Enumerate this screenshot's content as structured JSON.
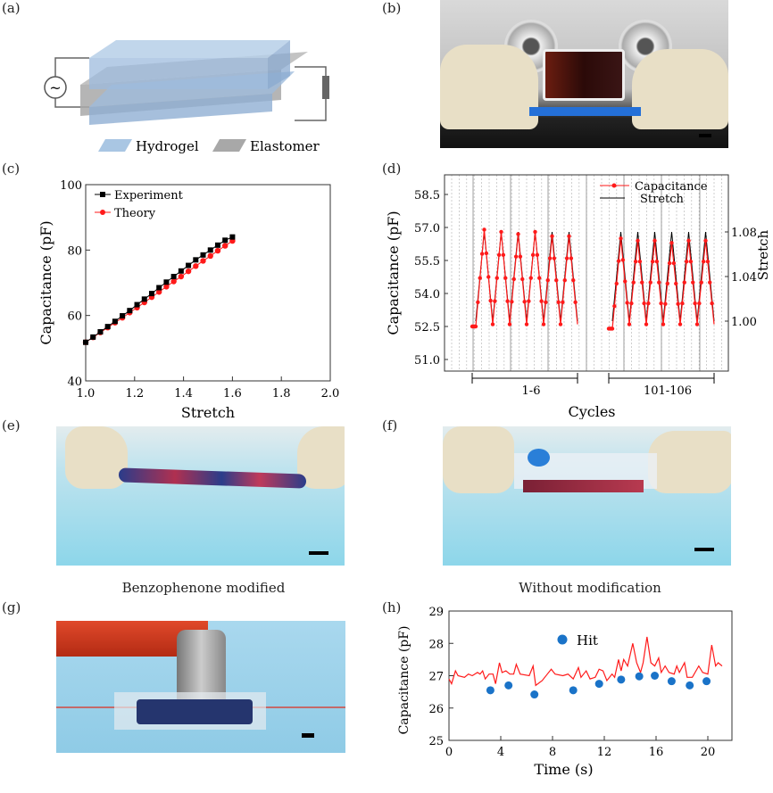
{
  "panels": {
    "a": {
      "label": "(a)",
      "legend": [
        "Hydrogel",
        "Elastomer"
      ],
      "ac_symbol": "~"
    },
    "b": {
      "label": "(b)"
    },
    "c": {
      "label": "(c)"
    },
    "d": {
      "label": "(d)"
    },
    "e": {
      "label": "(e)",
      "caption": "Benzophenone modified"
    },
    "f": {
      "label": "(f)",
      "caption": "Without modification"
    },
    "g": {
      "label": "(g)"
    },
    "h": {
      "label": "(h)"
    }
  },
  "colors": {
    "black": "#000000",
    "red": "#ff1a1a",
    "blue": "#1a73c8",
    "hydrogel": "#a9c6e3",
    "elastomer": "#a8a8a8"
  },
  "chart_data": [
    {
      "id": "c",
      "type": "line",
      "xlabel": "Stretch",
      "ylabel": "Capacitance (pF)",
      "xlim": [
        1.0,
        2.0
      ],
      "ylim": [
        40,
        100
      ],
      "xticks": [
        "1.0",
        "1.2",
        "1.4",
        "1.6",
        "1.8",
        "2.0"
      ],
      "yticks": [
        "40",
        "60",
        "80",
        "100"
      ],
      "legend_position": "top-left",
      "x": [
        1.0,
        1.03,
        1.06,
        1.09,
        1.12,
        1.15,
        1.18,
        1.21,
        1.24,
        1.27,
        1.3,
        1.33,
        1.36,
        1.39,
        1.42,
        1.45,
        1.48,
        1.51,
        1.54,
        1.57,
        1.6
      ],
      "series": [
        {
          "name": "Experiment",
          "color": "#000000",
          "marker": "square",
          "values": [
            51.8,
            53.4,
            55.0,
            56.6,
            58.2,
            59.9,
            61.5,
            63.3,
            65.0,
            66.7,
            68.5,
            70.2,
            71.9,
            73.6,
            75.3,
            77.0,
            78.5,
            80.0,
            81.5,
            83.0,
            84.0
          ]
        },
        {
          "name": "Theory",
          "color": "#ff1a1a",
          "marker": "circle",
          "values": [
            51.8,
            53.3,
            54.8,
            56.3,
            57.8,
            59.3,
            60.9,
            62.4,
            64.0,
            65.6,
            67.2,
            68.8,
            70.4,
            71.9,
            73.5,
            75.1,
            76.7,
            78.2,
            79.8,
            81.3,
            82.8
          ]
        }
      ]
    },
    {
      "id": "d",
      "type": "line",
      "xlabel": "Cycles",
      "ylabel": "Capacitance (pF)",
      "y2label": "Stretch",
      "ylim": [
        50.2,
        59.0
      ],
      "y2lim": [
        1.0,
        1.08
      ],
      "yticks": [
        "51.0",
        "52.5",
        "54.0",
        "55.5",
        "57.0",
        "58.5"
      ],
      "y2ticks": [
        "1.00",
        "1.04",
        "1.08"
      ],
      "groups": [
        {
          "label": "1-6",
          "baseline": 52.5,
          "min": 52.6,
          "peaks": [
            56.9,
            56.8,
            56.7,
            56.8,
            56.6,
            56.6
          ]
        },
        {
          "label": "101-106",
          "baseline": 52.4,
          "min": 52.6,
          "peaks": [
            56.5,
            56.4,
            56.4,
            56.3,
            56.4,
            56.4
          ]
        }
      ],
      "stretch_max": 1.08,
      "legend_position": "top-right",
      "series": [
        {
          "name": "Capacitance",
          "color": "#ff1a1a"
        },
        {
          "name": "Stretch",
          "color": "#000000"
        }
      ]
    },
    {
      "id": "h",
      "type": "line",
      "xlabel": "Time (s)",
      "ylabel": "Capacitance (pF)",
      "xlim": [
        0,
        22
      ],
      "ylim": [
        25,
        29
      ],
      "xticks": [
        "0",
        "4",
        "8",
        "12",
        "16",
        "20"
      ],
      "yticks": [
        "25",
        "26",
        "27",
        "28",
        "29"
      ],
      "legend_position": "top-center",
      "line": {
        "name": "Capacitance",
        "color": "#ff1a1a",
        "points": [
          [
            0,
            26.9
          ],
          [
            0.2,
            26.75
          ],
          [
            0.5,
            27.15
          ],
          [
            0.7,
            27.0
          ],
          [
            1.2,
            26.95
          ],
          [
            1.5,
            27.05
          ],
          [
            1.8,
            27.0
          ],
          [
            2.2,
            27.1
          ],
          [
            2.4,
            27.05
          ],
          [
            2.6,
            27.15
          ],
          [
            2.8,
            26.9
          ],
          [
            3.1,
            27.05
          ],
          [
            3.4,
            27.05
          ],
          [
            3.6,
            26.75
          ],
          [
            3.9,
            27.4
          ],
          [
            4.1,
            27.1
          ],
          [
            4.4,
            27.15
          ],
          [
            4.7,
            27.05
          ],
          [
            5.0,
            27.05
          ],
          [
            5.2,
            27.35
          ],
          [
            5.5,
            27.05
          ],
          [
            6.2,
            27.0
          ],
          [
            6.5,
            27.3
          ],
          [
            6.7,
            26.7
          ],
          [
            7.2,
            26.85
          ],
          [
            7.6,
            27.05
          ],
          [
            7.9,
            27.2
          ],
          [
            8.2,
            27.05
          ],
          [
            8.8,
            27.0
          ],
          [
            9.2,
            27.05
          ],
          [
            9.6,
            26.9
          ],
          [
            10.0,
            27.25
          ],
          [
            10.2,
            26.95
          ],
          [
            10.6,
            27.15
          ],
          [
            10.9,
            26.9
          ],
          [
            11.3,
            26.95
          ],
          [
            11.6,
            27.2
          ],
          [
            11.9,
            27.15
          ],
          [
            12.2,
            26.85
          ],
          [
            12.6,
            27.05
          ],
          [
            12.8,
            26.95
          ],
          [
            13.1,
            27.5
          ],
          [
            13.3,
            27.15
          ],
          [
            13.5,
            27.5
          ],
          [
            13.8,
            27.3
          ],
          [
            14.2,
            28.0
          ],
          [
            14.5,
            27.4
          ],
          [
            14.8,
            27.1
          ],
          [
            15.0,
            27.4
          ],
          [
            15.3,
            28.2
          ],
          [
            15.6,
            27.4
          ],
          [
            15.9,
            27.3
          ],
          [
            16.2,
            27.55
          ],
          [
            16.4,
            27.1
          ],
          [
            16.7,
            27.3
          ],
          [
            17.0,
            27.1
          ],
          [
            17.4,
            27.05
          ],
          [
            17.6,
            27.3
          ],
          [
            17.8,
            27.1
          ],
          [
            18.2,
            27.4
          ],
          [
            18.4,
            26.95
          ],
          [
            18.8,
            26.95
          ],
          [
            19.3,
            27.3
          ],
          [
            19.6,
            27.1
          ],
          [
            20.0,
            27.05
          ],
          [
            20.3,
            27.95
          ],
          [
            20.6,
            27.3
          ],
          [
            20.8,
            27.4
          ],
          [
            21.1,
            27.3
          ]
        ]
      },
      "scatter": {
        "name": "Hit",
        "color": "#1a73c8",
        "points": [
          [
            3.2,
            26.55
          ],
          [
            4.6,
            26.7
          ],
          [
            6.6,
            26.42
          ],
          [
            9.6,
            26.55
          ],
          [
            11.6,
            26.75
          ],
          [
            13.3,
            26.88
          ],
          [
            14.7,
            26.98
          ],
          [
            15.9,
            27.0
          ],
          [
            17.2,
            26.83
          ],
          [
            18.6,
            26.7
          ],
          [
            19.9,
            26.83
          ]
        ]
      }
    }
  ]
}
